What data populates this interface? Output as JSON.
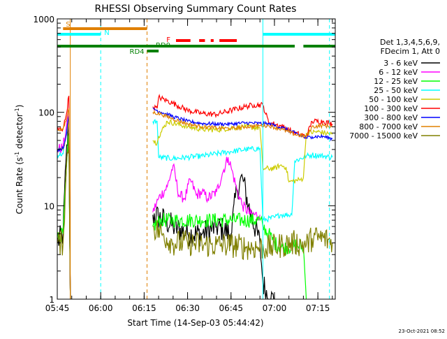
{
  "chart_data": {
    "type": "line",
    "title": "RHESSI Observing Summary Count Rates",
    "xlabel": "Start Time (14-Sep-03 05:44:42)",
    "ylabel_main": "Count Rate (s",
    "ylabel_sup": "-1",
    "ylabel_mid": " detector",
    "ylabel_sup2": "-1",
    "ylabel_end": ")",
    "y_scale": "log",
    "ylim": [
      1,
      1000
    ],
    "xlim_minutes": [
      0,
      96
    ],
    "x_ticks": [
      {
        "label": "05:45",
        "minutes": 0
      },
      {
        "label": "06:00",
        "minutes": 15
      },
      {
        "label": "06:15",
        "minutes": 30
      },
      {
        "label": "06:30",
        "minutes": 45
      },
      {
        "label": "06:45",
        "minutes": 60
      },
      {
        "label": "07:00",
        "minutes": 75
      },
      {
        "label": "07:15",
        "minutes": 90
      }
    ],
    "y_ticks": [
      {
        "label": "1",
        "value": 1
      },
      {
        "label": "10",
        "value": 10
      },
      {
        "label": "100",
        "value": 100
      },
      {
        "label": "1000",
        "value": 1000
      }
    ],
    "legend": {
      "position": "right",
      "header": [
        "Det 1,3,4,5,6,9,",
        "FDecim 1, Att 0"
      ],
      "entries": [
        {
          "label": "3 - 6 keV",
          "color": "#000000"
        },
        {
          "label": "6 - 12 keV",
          "color": "#ff00ff"
        },
        {
          "label": "12 - 25 keV",
          "color": "#00ff00"
        },
        {
          "label": "25 - 50 keV",
          "color": "#00ffff"
        },
        {
          "label": "50 - 100 keV",
          "color": "#cccc00"
        },
        {
          "label": "100 - 300 keV",
          "color": "#ff0000"
        },
        {
          "label": "300 - 800 keV",
          "color": "#0000ff"
        },
        {
          "label": "800 - 7000 keV",
          "color": "#e08000"
        },
        {
          "label": "7000 - 15000 keV",
          "color": "#808000"
        }
      ]
    },
    "flags": [
      {
        "label": "S",
        "color": "#e08000",
        "spans": [
          [
            2,
            31
          ]
        ]
      },
      {
        "label": "N",
        "color": "#00ffff",
        "spans": [
          [
            -1,
            15
          ],
          [
            71,
            96
          ]
        ]
      },
      {
        "label": "RD0",
        "color": "#008000",
        "spans": [
          [
            -1,
            72
          ],
          [
            72,
            82
          ],
          [
            85,
            96
          ]
        ]
      },
      {
        "label": "RD4",
        "color": "#008000",
        "spans": [
          [
            31,
            35
          ]
        ]
      },
      {
        "label": "F",
        "color": "#ff0000",
        "spans": [
          [
            41,
            46
          ],
          [
            49,
            51
          ],
          [
            53,
            54
          ],
          [
            56,
            62
          ]
        ]
      }
    ],
    "vertical_markers": [
      {
        "minutes": 4.5,
        "color": "#e08000",
        "style": "solid"
      },
      {
        "minutes": 15,
        "color": "#00ffff",
        "style": "dashed"
      },
      {
        "minutes": 31,
        "color": "#e08000",
        "style": "dashed"
      },
      {
        "minutes": 71,
        "color": "#00ffff",
        "style": "solid"
      },
      {
        "minutes": 94,
        "color": "#00ffff",
        "style": "dashed"
      }
    ],
    "series": [
      {
        "name": "3 - 6 keV",
        "color": "#000000",
        "noise": 0.14,
        "points": [
          [
            0,
            4
          ],
          [
            2,
            5
          ],
          [
            3,
            30
          ],
          [
            4,
            80
          ],
          [
            4.5,
            1
          ],
          [
            31.5,
            null
          ],
          [
            33,
            8
          ],
          [
            37,
            7
          ],
          [
            40,
            6
          ],
          [
            45,
            5
          ],
          [
            50,
            5
          ],
          [
            55,
            6
          ],
          [
            60,
            5
          ],
          [
            62,
            15
          ],
          [
            64,
            20
          ],
          [
            66,
            10
          ],
          [
            70,
            4
          ],
          [
            71,
            1.5
          ],
          [
            73,
            1
          ],
          [
            75,
            1
          ],
          [
            76,
            null
          ],
          [
            85,
            null
          ]
        ]
      },
      {
        "name": "6 - 12 keV",
        "color": "#ff00ff",
        "noise": 0.06,
        "points": [
          [
            0,
            40
          ],
          [
            2,
            42
          ],
          [
            3,
            65
          ],
          [
            4,
            100
          ],
          [
            4.5,
            1
          ],
          [
            31.5,
            null
          ],
          [
            33,
            8.5
          ],
          [
            35,
            12
          ],
          [
            38,
            16
          ],
          [
            40,
            27
          ],
          [
            42,
            13
          ],
          [
            44,
            12
          ],
          [
            46,
            19
          ],
          [
            48,
            13
          ],
          [
            50,
            14
          ],
          [
            52,
            12
          ],
          [
            55,
            14
          ],
          [
            57,
            22
          ],
          [
            59,
            33
          ],
          [
            60,
            26
          ],
          [
            62,
            15
          ],
          [
            64,
            10
          ],
          [
            67,
            8
          ],
          [
            70,
            8
          ],
          [
            71,
            null
          ]
        ]
      },
      {
        "name": "12 - 25 keV",
        "color": "#00ff00",
        "noise": 0.08,
        "points": [
          [
            0,
            4.5
          ],
          [
            2,
            5
          ],
          [
            3,
            20
          ],
          [
            4,
            60
          ],
          [
            4.5,
            1
          ],
          [
            31.5,
            null
          ],
          [
            33,
            6
          ],
          [
            36,
            7
          ],
          [
            40,
            7
          ],
          [
            50,
            7
          ],
          [
            60,
            7
          ],
          [
            70,
            7
          ],
          [
            71,
            6
          ],
          [
            73,
            5
          ],
          [
            75,
            4
          ],
          [
            78,
            3.5
          ],
          [
            82,
            3.8
          ],
          [
            85,
            3.6
          ],
          [
            86,
            1
          ],
          [
            88,
            null
          ]
        ]
      },
      {
        "name": "25 - 50 keV",
        "color": "#00ffff",
        "noise": 0.03,
        "points": [
          [
            0,
            35
          ],
          [
            2,
            36
          ],
          [
            3,
            55
          ],
          [
            4,
            90
          ],
          [
            4.5,
            1
          ],
          [
            31.5,
            null
          ],
          [
            33,
            80
          ],
          [
            34.5,
            80
          ],
          [
            35,
            33
          ],
          [
            40,
            32
          ],
          [
            45,
            33
          ],
          [
            50,
            34
          ],
          [
            55,
            36
          ],
          [
            60,
            38
          ],
          [
            65,
            40
          ],
          [
            70,
            41
          ],
          [
            71,
            7
          ],
          [
            75,
            7.5
          ],
          [
            77,
            8
          ],
          [
            81,
            8
          ],
          [
            82,
            30
          ],
          [
            86,
            34
          ],
          [
            88,
            35
          ],
          [
            92,
            34
          ],
          [
            95,
            33
          ]
        ]
      },
      {
        "name": "50 - 100 keV",
        "color": "#cccc00",
        "noise": 0.03,
        "points": [
          [
            0,
            40
          ],
          [
            2,
            40
          ],
          [
            3,
            55
          ],
          [
            4,
            85
          ],
          [
            4.5,
            1
          ],
          [
            31.5,
            null
          ],
          [
            33,
            50
          ],
          [
            34.5,
            47
          ],
          [
            35,
            55
          ],
          [
            38,
            80
          ],
          [
            45,
            70
          ],
          [
            50,
            66
          ],
          [
            55,
            65
          ],
          [
            60,
            68
          ],
          [
            65,
            70
          ],
          [
            70,
            68
          ],
          [
            71,
            25
          ],
          [
            75,
            25
          ],
          [
            77,
            27
          ],
          [
            79,
            26
          ],
          [
            80,
            18
          ],
          [
            84,
            19
          ],
          [
            85,
            20
          ],
          [
            86,
            60
          ],
          [
            90,
            62
          ],
          [
            95,
            58
          ]
        ]
      },
      {
        "name": "100 - 300 keV",
        "color": "#ff0000",
        "noise": 0.03,
        "points": [
          [
            0,
            65
          ],
          [
            2,
            67
          ],
          [
            3,
            90
          ],
          [
            4,
            150
          ],
          [
            4.5,
            1
          ],
          [
            31.5,
            null
          ],
          [
            33,
            115
          ],
          [
            34.5,
            110
          ],
          [
            35,
            145
          ],
          [
            40,
            125
          ],
          [
            45,
            105
          ],
          [
            50,
            97
          ],
          [
            55,
            95
          ],
          [
            60,
            105
          ],
          [
            65,
            115
          ],
          [
            68,
            120
          ],
          [
            71,
            120
          ],
          [
            73,
            78
          ],
          [
            78,
            70
          ],
          [
            82,
            60
          ],
          [
            86,
            55
          ],
          [
            88,
            80
          ],
          [
            92,
            80
          ],
          [
            95,
            75
          ]
        ]
      },
      {
        "name": "300 - 800 keV",
        "color": "#0000ff",
        "noise": 0.02,
        "points": [
          [
            0,
            40
          ],
          [
            2,
            41
          ],
          [
            3,
            55
          ],
          [
            4,
            90
          ],
          [
            4.5,
            1
          ],
          [
            31.5,
            null
          ],
          [
            33,
            110
          ],
          [
            36,
            100
          ],
          [
            40,
            90
          ],
          [
            45,
            80
          ],
          [
            50,
            76
          ],
          [
            55,
            75
          ],
          [
            60,
            75
          ],
          [
            65,
            77
          ],
          [
            70,
            76
          ],
          [
            73,
            75
          ],
          [
            78,
            68
          ],
          [
            82,
            60
          ],
          [
            86,
            53
          ],
          [
            88,
            55
          ],
          [
            92,
            55
          ],
          [
            95,
            52
          ]
        ]
      },
      {
        "name": "800 - 7000 keV",
        "color": "#e08000",
        "noise": 0.02,
        "points": [
          [
            0,
            65
          ],
          [
            2,
            66
          ],
          [
            3,
            80
          ],
          [
            4,
            110
          ],
          [
            4.5,
            1
          ],
          [
            31.5,
            null
          ],
          [
            33,
            100
          ],
          [
            36,
            95
          ],
          [
            40,
            85
          ],
          [
            45,
            75
          ],
          [
            50,
            70
          ],
          [
            55,
            68
          ],
          [
            60,
            67
          ],
          [
            65,
            70
          ],
          [
            70,
            72
          ],
          [
            73,
            72
          ],
          [
            78,
            65
          ],
          [
            82,
            58
          ],
          [
            86,
            55
          ],
          [
            88,
            70
          ],
          [
            92,
            72
          ],
          [
            95,
            70
          ]
        ]
      },
      {
        "name": "7000 - 15000 keV",
        "color": "#808000",
        "noise": 0.14,
        "points": [
          [
            0,
            4
          ],
          [
            2,
            4
          ],
          [
            3,
            20
          ],
          [
            4,
            60
          ],
          [
            4.5,
            1
          ],
          [
            31.5,
            null
          ],
          [
            33,
            6
          ],
          [
            36,
            5
          ],
          [
            40,
            4
          ],
          [
            45,
            4
          ],
          [
            50,
            3.8
          ],
          [
            55,
            3.8
          ],
          [
            60,
            3.8
          ],
          [
            65,
            3.6
          ],
          [
            70,
            3.6
          ],
          [
            72,
            3.5
          ],
          [
            78,
            3.8
          ],
          [
            82,
            4
          ],
          [
            86,
            3.8
          ],
          [
            88,
            4.5
          ],
          [
            92,
            4.5
          ],
          [
            95,
            4
          ]
        ]
      }
    ]
  },
  "footer": {
    "timestamp": "23-Oct-2021 08:52"
  }
}
